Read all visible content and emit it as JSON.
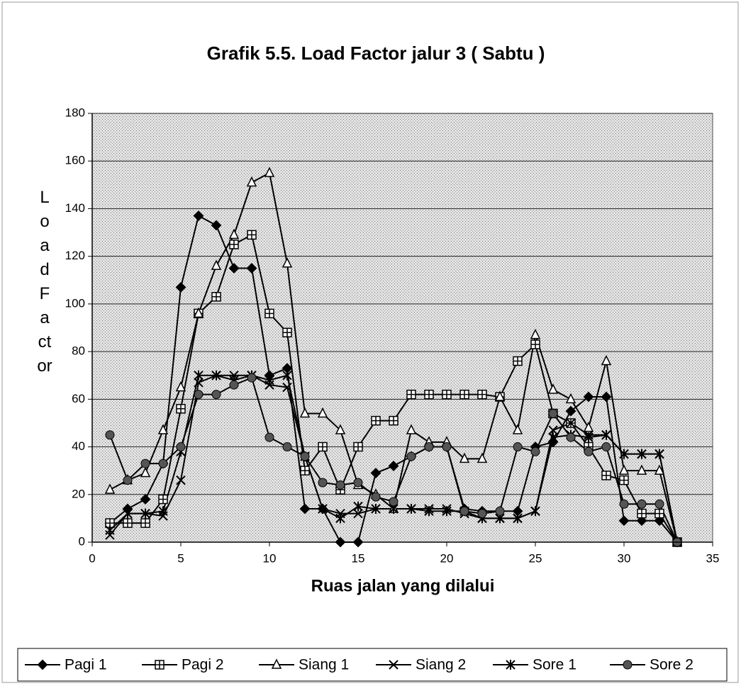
{
  "chart_data": {
    "type": "line",
    "title": "Grafik 5.5. Load Factor jalur 3 ( Sabtu )",
    "x_label": "Ruas jalan yang dilalui",
    "y_label": "Load Factor",
    "x": [
      1,
      2,
      3,
      4,
      5,
      6,
      7,
      8,
      9,
      10,
      11,
      12,
      13,
      14,
      15,
      16,
      17,
      18,
      19,
      20,
      21,
      22,
      23,
      24,
      25,
      26,
      27,
      28,
      29,
      30,
      31,
      32,
      33
    ],
    "series": [
      {
        "name": "Pagi 1",
        "color": "#000000",
        "marker": "diamond",
        "values": [
          8,
          14,
          18,
          33,
          107,
          137,
          133,
          115,
          115,
          70,
          73,
          14,
          14,
          0,
          0,
          29,
          32,
          36,
          40,
          40,
          14,
          13,
          13,
          13,
          40,
          42,
          55,
          61,
          61,
          9,
          9,
          9,
          0
        ]
      },
      {
        "name": "Pagi 2",
        "color": "#000000",
        "marker": "square",
        "values": [
          8,
          8,
          8,
          18,
          56,
          96,
          103,
          125,
          129,
          96,
          88,
          30,
          40,
          22,
          40,
          51,
          51,
          62,
          62,
          62,
          62,
          62,
          61,
          76,
          83,
          54,
          50,
          40,
          28,
          26,
          12,
          12,
          0
        ]
      },
      {
        "name": "Siang 1",
        "color": "#000000",
        "marker": "triangle",
        "values": [
          22,
          26,
          29,
          47,
          65,
          96,
          116,
          129,
          151,
          155,
          117,
          54,
          54,
          47,
          24,
          20,
          14,
          47,
          42,
          42,
          35,
          35,
          61,
          47,
          87,
          64,
          60,
          48,
          76,
          30,
          30,
          30,
          0
        ]
      },
      {
        "name": "Siang 2",
        "color": "#000000",
        "marker": "x",
        "values": [
          3,
          12,
          12,
          11,
          26,
          67,
          70,
          70,
          70,
          66,
          65,
          36,
          14,
          12,
          12,
          14,
          14,
          14,
          14,
          14,
          12,
          10,
          10,
          10,
          13,
          47,
          50,
          45,
          45,
          37,
          37,
          37,
          0
        ]
      },
      {
        "name": "Sore 1",
        "color": "#000000",
        "marker": "star",
        "values": [
          5,
          12,
          12,
          13,
          38,
          70,
          70,
          68,
          70,
          68,
          70,
          36,
          14,
          10,
          15,
          14,
          14,
          14,
          13,
          13,
          13,
          10,
          10,
          10,
          13,
          44,
          45,
          44,
          45,
          37,
          37,
          37,
          0
        ]
      },
      {
        "name": "Sore 2",
        "color": "#000000",
        "marker": "circle",
        "values": [
          45,
          26,
          33,
          33,
          40,
          62,
          62,
          66,
          69,
          44,
          40,
          36,
          25,
          24,
          25,
          19,
          17,
          36,
          40,
          40,
          13,
          12,
          13,
          40,
          38,
          54,
          44,
          38,
          40,
          16,
          16,
          16,
          0
        ]
      }
    ],
    "xlim": [
      0,
      35
    ],
    "xticks": [
      0,
      5,
      10,
      15,
      20,
      25,
      30,
      35
    ],
    "ylim": [
      0,
      180
    ],
    "yticks": [
      0,
      20,
      40,
      60,
      80,
      100,
      120,
      140,
      160,
      180
    ],
    "grid": true,
    "legend": "bottom"
  }
}
